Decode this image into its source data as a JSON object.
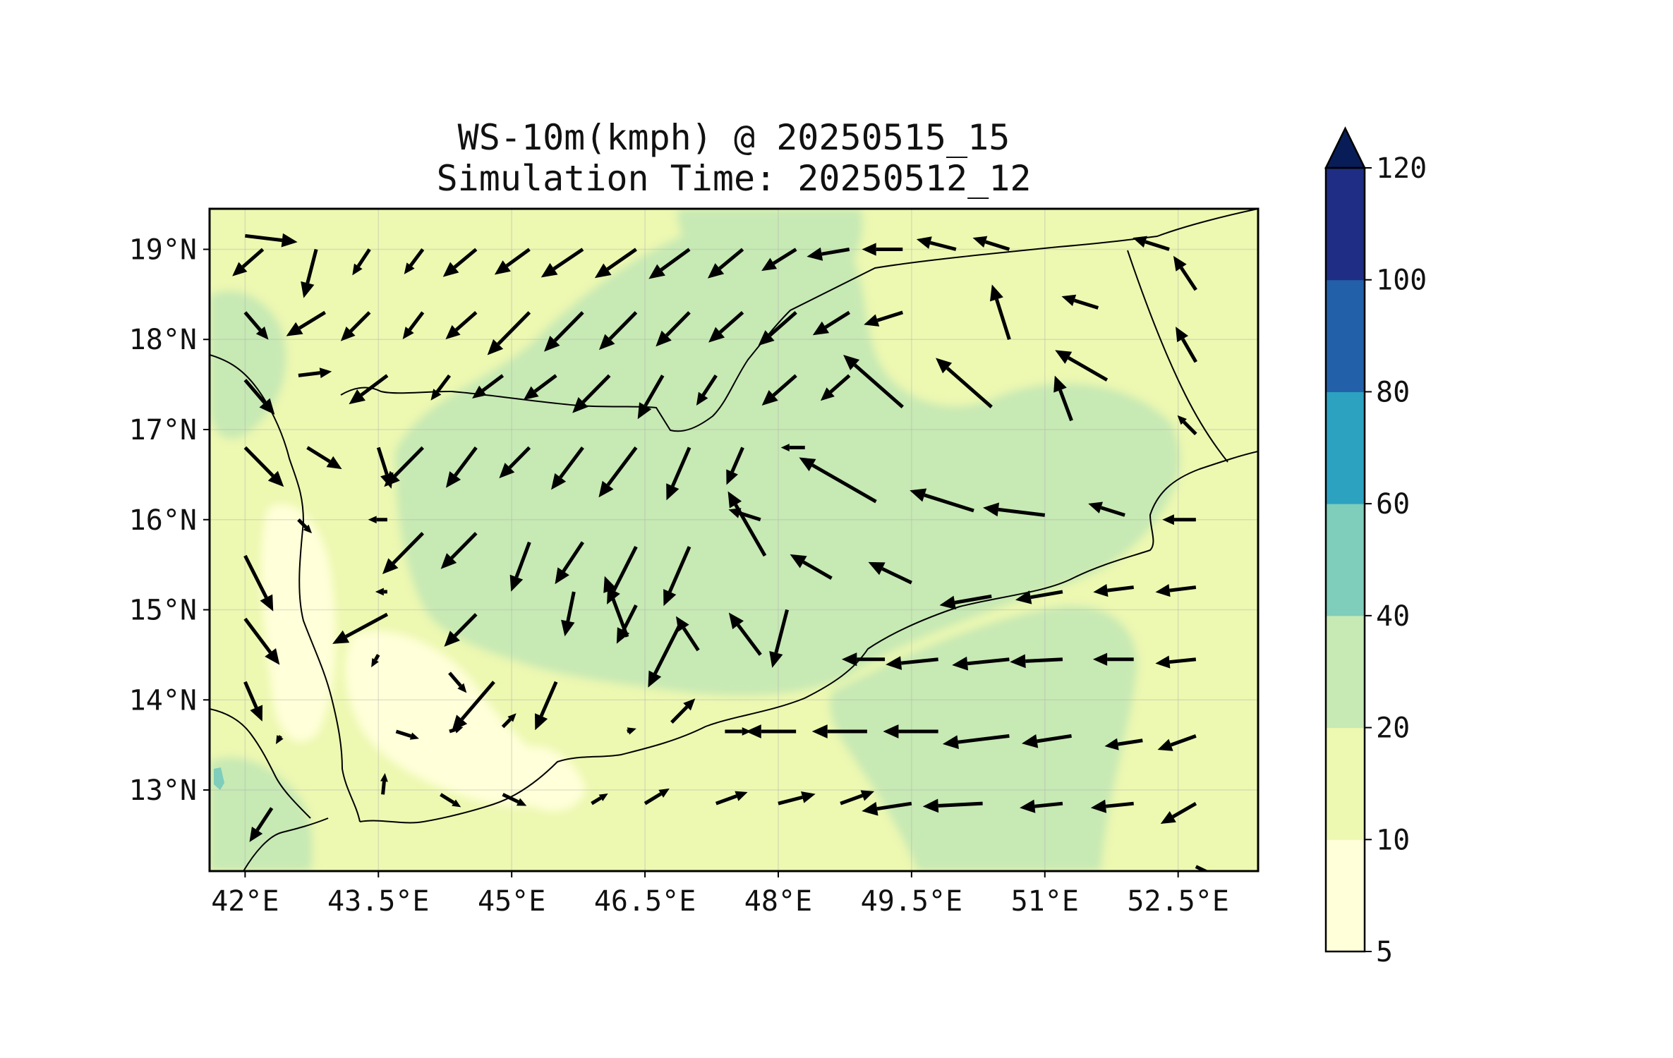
{
  "title": {
    "line1": "WS-10m(kmph) @ 20250515_15",
    "line2": "Simulation Time: 20250512_12"
  },
  "map": {
    "lon_range": [
      41.6,
      53.4
    ],
    "lat_range": [
      12.1,
      19.45
    ],
    "lon_ticks": [
      {
        "value": 42.0,
        "label": "42°E"
      },
      {
        "value": 43.5,
        "label": "43.5°E"
      },
      {
        "value": 45.0,
        "label": "45°E"
      },
      {
        "value": 46.5,
        "label": "46.5°E"
      },
      {
        "value": 48.0,
        "label": "48°E"
      },
      {
        "value": 49.5,
        "label": "49.5°E"
      },
      {
        "value": 51.0,
        "label": "51°E"
      },
      {
        "value": 52.5,
        "label": "52.5°E"
      }
    ],
    "lat_ticks": [
      {
        "value": 19,
        "label": "19°N"
      },
      {
        "value": 18,
        "label": "18°N"
      },
      {
        "value": 17,
        "label": "17°N"
      },
      {
        "value": 16,
        "label": "16°N"
      },
      {
        "value": 15,
        "label": "15°N"
      },
      {
        "value": 14,
        "label": "14°N"
      },
      {
        "value": 13,
        "label": "13°N"
      }
    ],
    "grid": true,
    "fill_colors": {
      "c5_10": "#ffffd9",
      "c10_20": "#edf8b1",
      "c20_40": "#c7e9b4",
      "c40_60": "#7fcdbb",
      "background": "#ffffff",
      "border": "#000000"
    }
  },
  "colorbar": {
    "levels": [
      {
        "label": "5"
      },
      {
        "label": "10"
      },
      {
        "label": "20"
      },
      {
        "label": "40"
      },
      {
        "label": "60"
      },
      {
        "label": "80"
      },
      {
        "label": "100"
      },
      {
        "label": "120"
      }
    ],
    "colors": [
      "#ffffd9",
      "#edf8b1",
      "#c7e9b4",
      "#7fcdbb",
      "#2ca2c0",
      "#2260a9",
      "#1f2d84",
      "#081d58"
    ],
    "extend": "max"
  },
  "chart_data": {
    "type": "filled-contour-map-with-wind-vectors",
    "variable": "WS-10m(kmph)",
    "valid_time": "20250515_15",
    "simulation_time": "20250512_12",
    "levels": [
      5,
      10,
      20,
      40,
      60,
      80,
      100,
      120
    ],
    "wind_vectors": [
      {
        "lon": 42.0,
        "lat": 19.15,
        "u": 1.0,
        "v": -0.12,
        "mag": 22
      },
      {
        "lon": 42.2,
        "lat": 19.0,
        "u": -0.75,
        "v": -0.66,
        "mag": 17
      },
      {
        "lon": 42.8,
        "lat": 19.0,
        "u": -0.25,
        "v": -0.97,
        "mag": 21
      },
      {
        "lon": 43.4,
        "lat": 19.0,
        "u": -0.55,
        "v": -0.83,
        "mag": 13
      },
      {
        "lon": 44.0,
        "lat": 19.0,
        "u": -0.6,
        "v": -0.8,
        "mag": 13
      },
      {
        "lon": 44.6,
        "lat": 19.0,
        "u": -0.77,
        "v": -0.64,
        "mag": 18
      },
      {
        "lon": 45.2,
        "lat": 19.0,
        "u": -0.81,
        "v": -0.59,
        "mag": 18
      },
      {
        "lon": 45.8,
        "lat": 19.0,
        "u": -0.83,
        "v": -0.56,
        "mag": 21
      },
      {
        "lon": 46.4,
        "lat": 19.0,
        "u": -0.82,
        "v": -0.57,
        "mag": 21
      },
      {
        "lon": 47.0,
        "lat": 19.0,
        "u": -0.81,
        "v": -0.59,
        "mag": 21
      },
      {
        "lon": 47.6,
        "lat": 19.0,
        "u": -0.77,
        "v": -0.64,
        "mag": 19
      },
      {
        "lon": 48.2,
        "lat": 19.0,
        "u": -0.85,
        "v": -0.53,
        "mag": 17
      },
      {
        "lon": 48.8,
        "lat": 19.0,
        "u": -0.99,
        "v": -0.17,
        "mag": 18
      },
      {
        "lon": 49.4,
        "lat": 19.0,
        "u": -1.0,
        "v": 0.0,
        "mag": 17
      },
      {
        "lon": 50.0,
        "lat": 19.0,
        "u": -0.97,
        "v": 0.25,
        "mag": 17
      },
      {
        "lon": 50.6,
        "lat": 19.0,
        "u": -0.95,
        "v": 0.3,
        "mag": 16
      },
      {
        "lon": 52.4,
        "lat": 19.0,
        "u": -0.95,
        "v": 0.3,
        "mag": 16
      },
      {
        "lon": 52.7,
        "lat": 18.55,
        "u": -0.55,
        "v": 0.83,
        "mag": 17
      },
      {
        "lon": 42.0,
        "lat": 18.3,
        "u": 0.65,
        "v": -0.76,
        "mag": 15
      },
      {
        "lon": 42.9,
        "lat": 18.3,
        "u": -0.85,
        "v": -0.52,
        "mag": 19
      },
      {
        "lon": 43.4,
        "lat": 18.3,
        "u": -0.7,
        "v": -0.7,
        "mag": 17
      },
      {
        "lon": 44.0,
        "lat": 18.3,
        "u": -0.6,
        "v": -0.8,
        "mag": 14
      },
      {
        "lon": 44.6,
        "lat": 18.3,
        "u": -0.75,
        "v": -0.66,
        "mag": 17
      },
      {
        "lon": 45.2,
        "lat": 18.3,
        "u": -0.7,
        "v": -0.71,
        "mag": 25
      },
      {
        "lon": 45.8,
        "lat": 18.3,
        "u": -0.7,
        "v": -0.71,
        "mag": 23
      },
      {
        "lon": 46.4,
        "lat": 18.3,
        "u": -0.7,
        "v": -0.71,
        "mag": 22
      },
      {
        "lon": 47.0,
        "lat": 18.3,
        "u": -0.7,
        "v": -0.71,
        "mag": 20
      },
      {
        "lon": 47.6,
        "lat": 18.3,
        "u": -0.75,
        "v": -0.66,
        "mag": 19
      },
      {
        "lon": 48.2,
        "lat": 18.3,
        "u": -0.75,
        "v": -0.66,
        "mag": 21
      },
      {
        "lon": 48.8,
        "lat": 18.3,
        "u": -0.85,
        "v": -0.53,
        "mag": 18
      },
      {
        "lon": 49.4,
        "lat": 18.3,
        "u": -0.95,
        "v": -0.3,
        "mag": 17
      },
      {
        "lon": 50.6,
        "lat": 18.0,
        "u": -0.3,
        "v": 0.95,
        "mag": 24
      },
      {
        "lon": 51.6,
        "lat": 18.35,
        "u": -0.95,
        "v": 0.3,
        "mag": 16
      },
      {
        "lon": 52.7,
        "lat": 17.75,
        "u": -0.5,
        "v": 0.87,
        "mag": 17
      },
      {
        "lon": 42.0,
        "lat": 17.55,
        "u": 0.65,
        "v": -0.76,
        "mag": 19
      },
      {
        "lon": 42.6,
        "lat": 17.6,
        "u": 1.0,
        "v": 0.12,
        "mag": 14
      },
      {
        "lon": 43.6,
        "lat": 17.6,
        "u": -0.8,
        "v": -0.6,
        "mag": 20
      },
      {
        "lon": 44.3,
        "lat": 17.6,
        "u": -0.6,
        "v": -0.8,
        "mag": 13
      },
      {
        "lon": 44.9,
        "lat": 17.6,
        "u": -0.8,
        "v": -0.6,
        "mag": 16
      },
      {
        "lon": 45.5,
        "lat": 17.6,
        "u": -0.8,
        "v": -0.6,
        "mag": 17
      },
      {
        "lon": 46.1,
        "lat": 17.6,
        "u": -0.7,
        "v": -0.71,
        "mag": 22
      },
      {
        "lon": 46.7,
        "lat": 17.6,
        "u": -0.5,
        "v": -0.87,
        "mag": 21
      },
      {
        "lon": 47.3,
        "lat": 17.6,
        "u": -0.55,
        "v": -0.84,
        "mag": 15
      },
      {
        "lon": 48.2,
        "lat": 17.6,
        "u": -0.75,
        "v": -0.66,
        "mag": 19
      },
      {
        "lon": 48.8,
        "lat": 17.6,
        "u": -0.75,
        "v": -0.66,
        "mag": 16
      },
      {
        "lon": 49.4,
        "lat": 17.25,
        "u": -0.75,
        "v": 0.66,
        "mag": 33
      },
      {
        "lon": 50.4,
        "lat": 17.25,
        "u": -0.75,
        "v": 0.66,
        "mag": 31
      },
      {
        "lon": 51.3,
        "lat": 17.1,
        "u": -0.35,
        "v": 0.94,
        "mag": 20
      },
      {
        "lon": 51.7,
        "lat": 17.55,
        "u": -0.87,
        "v": 0.5,
        "mag": 25
      },
      {
        "lon": 52.7,
        "lat": 16.95,
        "u": -0.7,
        "v": 0.71,
        "mag": 11
      },
      {
        "lon": 42.0,
        "lat": 16.8,
        "u": 0.7,
        "v": -0.71,
        "mag": 23
      },
      {
        "lon": 42.7,
        "lat": 16.8,
        "u": 0.85,
        "v": -0.53,
        "mag": 17
      },
      {
        "lon": 43.5,
        "lat": 16.8,
        "u": 0.3,
        "v": -0.95,
        "mag": 18
      },
      {
        "lon": 44.0,
        "lat": 16.8,
        "u": -0.7,
        "v": -0.71,
        "mag": 23
      },
      {
        "lon": 44.6,
        "lat": 16.8,
        "u": -0.6,
        "v": -0.8,
        "mag": 21
      },
      {
        "lon": 45.2,
        "lat": 16.8,
        "u": -0.7,
        "v": -0.71,
        "mag": 18
      },
      {
        "lon": 45.8,
        "lat": 16.8,
        "u": -0.6,
        "v": -0.8,
        "mag": 22
      },
      {
        "lon": 46.4,
        "lat": 16.8,
        "u": -0.6,
        "v": -0.8,
        "mag": 26
      },
      {
        "lon": 47.0,
        "lat": 16.8,
        "u": -0.4,
        "v": -0.92,
        "mag": 24
      },
      {
        "lon": 47.6,
        "lat": 16.8,
        "u": -0.4,
        "v": -0.92,
        "mag": 17
      },
      {
        "lon": 48.3,
        "lat": 16.8,
        "u": -1.0,
        "v": 0.0,
        "mag": 10
      },
      {
        "lon": 49.1,
        "lat": 16.2,
        "u": -0.87,
        "v": 0.5,
        "mag": 37
      },
      {
        "lon": 50.2,
        "lat": 16.1,
        "u": -0.95,
        "v": 0.3,
        "mag": 28
      },
      {
        "lon": 51.0,
        "lat": 16.05,
        "u": -0.99,
        "v": 0.12,
        "mag": 26
      },
      {
        "lon": 51.9,
        "lat": 16.05,
        "u": -0.95,
        "v": 0.3,
        "mag": 16
      },
      {
        "lon": 52.7,
        "lat": 16.0,
        "u": -1.0,
        "v": 0.0,
        "mag": 14
      },
      {
        "lon": 42.0,
        "lat": 15.6,
        "u": 0.45,
        "v": -0.89,
        "mag": 26
      },
      {
        "lon": 42.6,
        "lat": 16.0,
        "u": 0.7,
        "v": -0.71,
        "mag": 8
      },
      {
        "lon": 43.6,
        "lat": 16.0,
        "u": -1.0,
        "v": 0.0,
        "mag": 8
      },
      {
        "lon": 44.0,
        "lat": 15.85,
        "u": -0.7,
        "v": -0.71,
        "mag": 24
      },
      {
        "lon": 44.6,
        "lat": 15.85,
        "u": -0.7,
        "v": -0.71,
        "mag": 21
      },
      {
        "lon": 45.2,
        "lat": 15.75,
        "u": -0.35,
        "v": -0.94,
        "mag": 22
      },
      {
        "lon": 45.8,
        "lat": 15.75,
        "u": -0.55,
        "v": -0.83,
        "mag": 21
      },
      {
        "lon": 46.4,
        "lat": 15.7,
        "u": -0.45,
        "v": -0.89,
        "mag": 27
      },
      {
        "lon": 47.0,
        "lat": 15.7,
        "u": -0.4,
        "v": -0.92,
        "mag": 27
      },
      {
        "lon": 47.8,
        "lat": 16.0,
        "u": -0.95,
        "v": 0.3,
        "mag": 14
      },
      {
        "lon": 47.85,
        "lat": 15.6,
        "u": -0.5,
        "v": 0.87,
        "mag": 31
      },
      {
        "lon": 48.6,
        "lat": 15.35,
        "u": -0.87,
        "v": 0.5,
        "mag": 20
      },
      {
        "lon": 49.5,
        "lat": 15.3,
        "u": -0.9,
        "v": 0.43,
        "mag": 20
      },
      {
        "lon": 50.4,
        "lat": 15.15,
        "u": -0.98,
        "v": -0.17,
        "mag": 22
      },
      {
        "lon": 51.2,
        "lat": 15.2,
        "u": -0.98,
        "v": -0.17,
        "mag": 20
      },
      {
        "lon": 52.0,
        "lat": 15.25,
        "u": -0.99,
        "v": -0.12,
        "mag": 17
      },
      {
        "lon": 52.7,
        "lat": 15.25,
        "u": -0.99,
        "v": -0.12,
        "mag": 17
      },
      {
        "lon": 42.0,
        "lat": 14.9,
        "u": 0.6,
        "v": -0.8,
        "mag": 24
      },
      {
        "lon": 43.6,
        "lat": 15.2,
        "u": -1.0,
        "v": 0.0,
        "mag": 5
      },
      {
        "lon": 43.6,
        "lat": 14.95,
        "u": -0.87,
        "v": -0.47,
        "mag": 26
      },
      {
        "lon": 44.6,
        "lat": 14.95,
        "u": -0.7,
        "v": -0.71,
        "mag": 19
      },
      {
        "lon": 45.7,
        "lat": 15.2,
        "u": -0.2,
        "v": -0.98,
        "mag": 19
      },
      {
        "lon": 46.3,
        "lat": 14.7,
        "u": -0.35,
        "v": 0.94,
        "mag": 27
      },
      {
        "lon": 46.4,
        "lat": 15.05,
        "u": -0.45,
        "v": -0.89,
        "mag": 18
      },
      {
        "lon": 46.9,
        "lat": 14.85,
        "u": -0.45,
        "v": -0.89,
        "mag": 30
      },
      {
        "lon": 47.1,
        "lat": 14.55,
        "u": -0.55,
        "v": 0.84,
        "mag": 17
      },
      {
        "lon": 47.8,
        "lat": 14.5,
        "u": -0.6,
        "v": 0.8,
        "mag": 22
      },
      {
        "lon": 48.1,
        "lat": 15.0,
        "u": -0.25,
        "v": -0.97,
        "mag": 25
      },
      {
        "lon": 49.2,
        "lat": 14.45,
        "u": -1.0,
        "v": 0.0,
        "mag": 18
      },
      {
        "lon": 49.8,
        "lat": 14.45,
        "u": -0.99,
        "v": -0.1,
        "mag": 22
      },
      {
        "lon": 50.6,
        "lat": 14.45,
        "u": -0.99,
        "v": -0.1,
        "mag": 24
      },
      {
        "lon": 51.2,
        "lat": 14.45,
        "u": -1.0,
        "v": -0.05,
        "mag": 22
      },
      {
        "lon": 52.0,
        "lat": 14.45,
        "u": -1.0,
        "v": 0.0,
        "mag": 17
      },
      {
        "lon": 52.7,
        "lat": 14.45,
        "u": -0.99,
        "v": -0.1,
        "mag": 17
      },
      {
        "lon": 42.0,
        "lat": 14.2,
        "u": 0.4,
        "v": -0.92,
        "mag": 18
      },
      {
        "lon": 43.5,
        "lat": 14.5,
        "u": -0.5,
        "v": -0.87,
        "mag": 6
      },
      {
        "lon": 44.3,
        "lat": 14.3,
        "u": 0.65,
        "v": -0.76,
        "mag": 11
      },
      {
        "lon": 44.8,
        "lat": 14.2,
        "u": -0.65,
        "v": -0.76,
        "mag": 27
      },
      {
        "lon": 45.5,
        "lat": 14.2,
        "u": -0.4,
        "v": -0.92,
        "mag": 22
      },
      {
        "lon": 46.8,
        "lat": 13.75,
        "u": 0.7,
        "v": 0.71,
        "mag": 14
      },
      {
        "lon": 47.4,
        "lat": 13.65,
        "u": 1.0,
        "v": 0.0,
        "mag": 11
      },
      {
        "lon": 48.2,
        "lat": 13.65,
        "u": -1.0,
        "v": 0.0,
        "mag": 21
      },
      {
        "lon": 49.0,
        "lat": 13.65,
        "u": -1.0,
        "v": 0.0,
        "mag": 23
      },
      {
        "lon": 49.8,
        "lat": 13.65,
        "u": -1.0,
        "v": 0.0,
        "mag": 23
      },
      {
        "lon": 50.6,
        "lat": 13.6,
        "u": -0.99,
        "v": -0.12,
        "mag": 28
      },
      {
        "lon": 51.3,
        "lat": 13.6,
        "u": -0.98,
        "v": -0.15,
        "mag": 21
      },
      {
        "lon": 52.1,
        "lat": 13.55,
        "u": -0.98,
        "v": -0.15,
        "mag": 16
      },
      {
        "lon": 52.7,
        "lat": 13.6,
        "u": -0.94,
        "v": -0.34,
        "mag": 17
      },
      {
        "lon": 42.4,
        "lat": 13.6,
        "u": -0.5,
        "v": -0.87,
        "mag": 4
      },
      {
        "lon": 43.7,
        "lat": 13.65,
        "u": 0.95,
        "v": -0.3,
        "mag": 10
      },
      {
        "lon": 44.3,
        "lat": 13.65,
        "u": 0.95,
        "v": 0.3,
        "mag": 6
      },
      {
        "lon": 44.9,
        "lat": 13.7,
        "u": 0.7,
        "v": 0.71,
        "mag": 8
      },
      {
        "lon": 46.3,
        "lat": 13.65,
        "u": 0.95,
        "v": 0.3,
        "mag": 4
      },
      {
        "lon": 43.55,
        "lat": 12.95,
        "u": 0.1,
        "v": 1.0,
        "mag": 9
      },
      {
        "lon": 44.2,
        "lat": 12.95,
        "u": 0.85,
        "v": -0.53,
        "mag": 10
      },
      {
        "lon": 44.9,
        "lat": 12.95,
        "u": 0.9,
        "v": -0.43,
        "mag": 11
      },
      {
        "lon": 45.9,
        "lat": 12.85,
        "u": 0.85,
        "v": 0.52,
        "mag": 8
      },
      {
        "lon": 46.5,
        "lat": 12.85,
        "u": 0.85,
        "v": 0.52,
        "mag": 12
      },
      {
        "lon": 47.3,
        "lat": 12.85,
        "u": 0.94,
        "v": 0.34,
        "mag": 14
      },
      {
        "lon": 48.0,
        "lat": 12.85,
        "u": 0.97,
        "v": 0.25,
        "mag": 16
      },
      {
        "lon": 48.7,
        "lat": 12.85,
        "u": 0.94,
        "v": 0.34,
        "mag": 15
      },
      {
        "lon": 49.5,
        "lat": 12.85,
        "u": -0.98,
        "v": -0.15,
        "mag": 21
      },
      {
        "lon": 50.3,
        "lat": 12.85,
        "u": -1.0,
        "v": -0.05,
        "mag": 25
      },
      {
        "lon": 51.2,
        "lat": 12.85,
        "u": -0.99,
        "v": -0.1,
        "mag": 18
      },
      {
        "lon": 52.0,
        "lat": 12.85,
        "u": -0.99,
        "v": -0.1,
        "mag": 18
      },
      {
        "lon": 52.7,
        "lat": 12.85,
        "u": -0.87,
        "v": -0.5,
        "mag": 17
      },
      {
        "lon": 42.3,
        "lat": 12.8,
        "u": -0.55,
        "v": -0.84,
        "mag": 17
      },
      {
        "lon": 52.7,
        "lat": 12.15,
        "u": 0.9,
        "v": -0.43,
        "mag": 16
      }
    ]
  }
}
